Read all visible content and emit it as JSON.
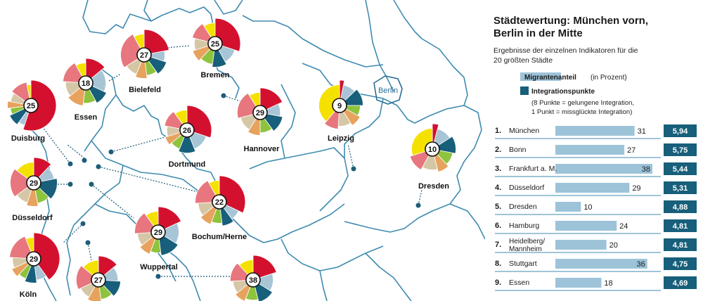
{
  "colors": {
    "accent": "#175f7a",
    "bar": "#9dc3d8",
    "border": "#3f8bb0",
    "slices": [
      "#d3112e",
      "#a8c5d6",
      "#175f7a",
      "#8ec33e",
      "#e7a25e",
      "#d5c7a5",
      "#e8767e",
      "#f5e100"
    ]
  },
  "map": {
    "berlin_label": "Berlin",
    "cities": [
      {
        "name": "Bremen",
        "value": "25",
        "weights": [
          30,
          12,
          10,
          10,
          8,
          9,
          12,
          9
        ]
      },
      {
        "name": "Bielefeld",
        "value": "27",
        "weights": [
          22,
          8,
          10,
          8,
          8,
          10,
          26,
          8
        ]
      },
      {
        "name": "Essen",
        "value": "18",
        "weights": [
          14,
          18,
          10,
          10,
          12,
          12,
          16,
          8
        ]
      },
      {
        "name": "Duisburg",
        "value": "25",
        "weights": [
          55,
          5,
          8,
          5,
          5,
          7,
          12,
          3
        ]
      },
      {
        "name": "Hannover",
        "value": "29",
        "weights": [
          18,
          10,
          12,
          10,
          9,
          12,
          20,
          9
        ]
      },
      {
        "name": "Dortmund",
        "value": "26",
        "weights": [
          30,
          14,
          12,
          8,
          6,
          8,
          12,
          10
        ]
      },
      {
        "name": "Leipzig",
        "value": "9",
        "weights": [
          3,
          10,
          12,
          8,
          8,
          10,
          10,
          39
        ]
      },
      {
        "name": "Dresden",
        "value": "10",
        "weights": [
          4,
          12,
          12,
          10,
          8,
          12,
          12,
          30
        ]
      },
      {
        "name": "Düsseldorf",
        "value": "29",
        "weights": [
          12,
          10,
          15,
          10,
          8,
          10,
          20,
          15
        ]
      },
      {
        "name": "Bochum/Herne",
        "value": "22",
        "weights": [
          32,
          8,
          8,
          8,
          8,
          10,
          18,
          8
        ]
      },
      {
        "name": "Wuppertal",
        "value": "29",
        "weights": [
          18,
          16,
          14,
          8,
          8,
          10,
          16,
          10
        ]
      },
      {
        "name": "Köln",
        "value": "29",
        "weights": [
          40,
          8,
          8,
          6,
          6,
          8,
          18,
          6
        ]
      },
      {
        "name": "",
        "value": "27",
        "weights": [
          14,
          12,
          12,
          10,
          10,
          10,
          18,
          14
        ]
      },
      {
        "name": "",
        "value": "38",
        "weights": [
          20,
          14,
          12,
          10,
          8,
          10,
          14,
          12
        ]
      }
    ]
  },
  "panel": {
    "title_line1": "Städtewertung: München vorn,",
    "title_line2": "Berlin in der Mitte",
    "subtitle_line1": "Ergebnisse der einzelnen Indikatoren für die",
    "subtitle_line2": "20 größten Städte",
    "legend_migrant": "Migrantenanteil",
    "legend_migrant_note": "(in Prozent)",
    "legend_integration": "Integrationspunkte",
    "legend_note_line1": "(8 Punkte = gelungene Integration,",
    "legend_note_line2": "1 Punkt = missglückte Integration)"
  },
  "chart_data": {
    "type": "bar",
    "title": "Städtewertung: München vorn, Berlin in der Mitte",
    "subtitle": "Ergebnisse der einzelnen Indikatoren für die 20 größten Städte",
    "series": [
      {
        "name": "Migrantenanteil",
        "unit": "in Prozent"
      },
      {
        "name": "Integrationspunkte"
      }
    ],
    "rows": [
      {
        "rank": "1.",
        "city": "München",
        "migrant": 31,
        "points": "5,94"
      },
      {
        "rank": "2.",
        "city": "Bonn",
        "migrant": 27,
        "points": "5,75"
      },
      {
        "rank": "3.",
        "city": "Frankfurt a. M.",
        "migrant": 38,
        "points": "5,44"
      },
      {
        "rank": "4.",
        "city": "Düsseldorf",
        "migrant": 29,
        "points": "5,31"
      },
      {
        "rank": "5.",
        "city": "Dresden",
        "migrant": 10,
        "points": "4,88"
      },
      {
        "rank": "6.",
        "city": "Hamburg",
        "migrant": 24,
        "points": "4,81"
      },
      {
        "rank": "7.",
        "city": "Heidelberg/ Mannheim",
        "city_line1": "Heidelberg/",
        "city_line2": "Mannheim",
        "migrant": 20,
        "points": "4,81"
      },
      {
        "rank": "8.",
        "city": "Stuttgart",
        "migrant": 36,
        "points": "4,75"
      },
      {
        "rank": "9.",
        "city": "Essen",
        "migrant": 18,
        "points": "4,69"
      }
    ]
  }
}
